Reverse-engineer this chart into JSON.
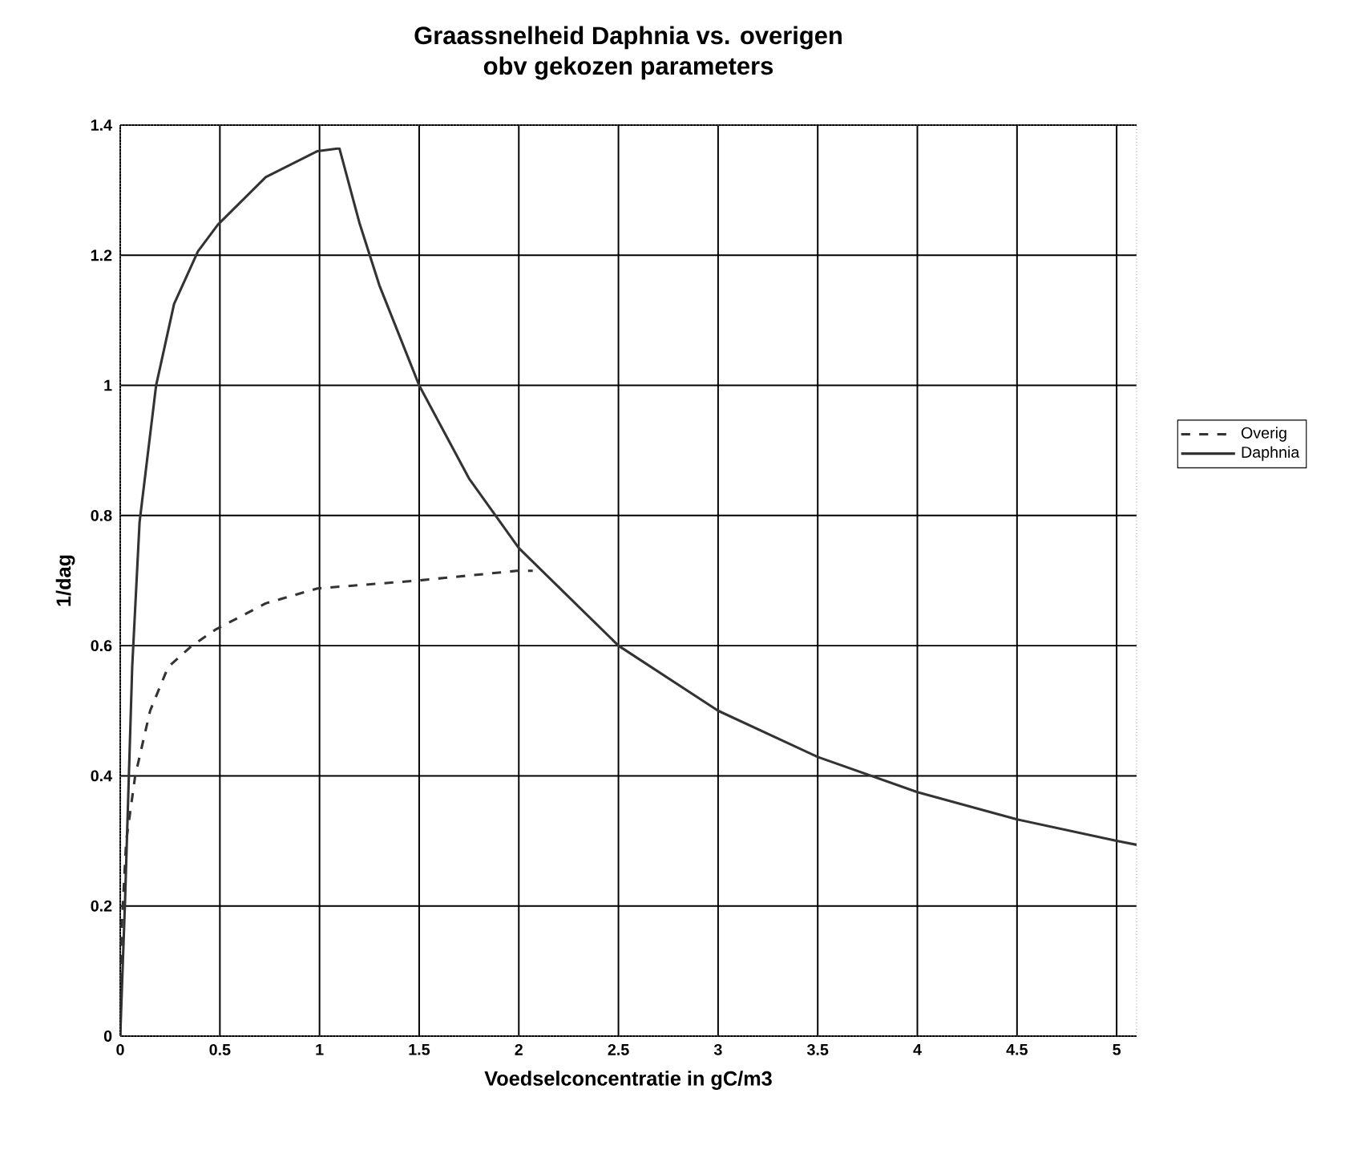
{
  "chart_data": {
    "type": "line",
    "title": "Graassnelheid Daphnia vs. overigen\nobv gekozen parameters",
    "xlabel": "Voedselconcentratie in gC/m3",
    "ylabel": "1/dag",
    "xlim": [
      0,
      5.1
    ],
    "ylim": [
      0,
      1.4
    ],
    "xticks": [
      0,
      0.5,
      1,
      1.5,
      2,
      2.5,
      3,
      3.5,
      4,
      4.5,
      5
    ],
    "yticks": [
      0,
      0.2,
      0.4,
      0.6,
      0.8,
      1,
      1.2,
      1.4
    ],
    "grid": true,
    "legend": "right",
    "marker": "none",
    "series": [
      {
        "name": "Overig",
        "color": "#333333",
        "line_style": "dashed",
        "x": [
          0,
          0.006,
          0.03,
          0.075,
          0.15,
          0.24,
          0.36,
          0.48,
          0.73,
          0.99,
          1.49,
          1.99,
          2.07
        ],
        "values": [
          0,
          0.16,
          0.3,
          0.4,
          0.5,
          0.567,
          0.6,
          0.625,
          0.665,
          0.688,
          0.7,
          0.715,
          0.715
        ]
      },
      {
        "name": "Daphnia",
        "color": "#333333",
        "line_style": "solid",
        "x": [
          0,
          0.024,
          0.06,
          0.097,
          0.18,
          0.27,
          0.39,
          0.49,
          0.73,
          0.99,
          1.09,
          1.1,
          1.2,
          1.3,
          1.5,
          1.75,
          2,
          2.5,
          3,
          3.5,
          4,
          4.5,
          5,
          5.1
        ],
        "values": [
          0,
          0.207,
          0.567,
          0.79,
          1.0,
          1.125,
          1.206,
          1.247,
          1.32,
          1.36,
          1.364,
          1.364,
          1.25,
          1.154,
          1.0,
          0.857,
          0.75,
          0.6,
          0.5,
          0.429,
          0.375,
          0.333,
          0.3,
          0.294
        ]
      }
    ]
  }
}
